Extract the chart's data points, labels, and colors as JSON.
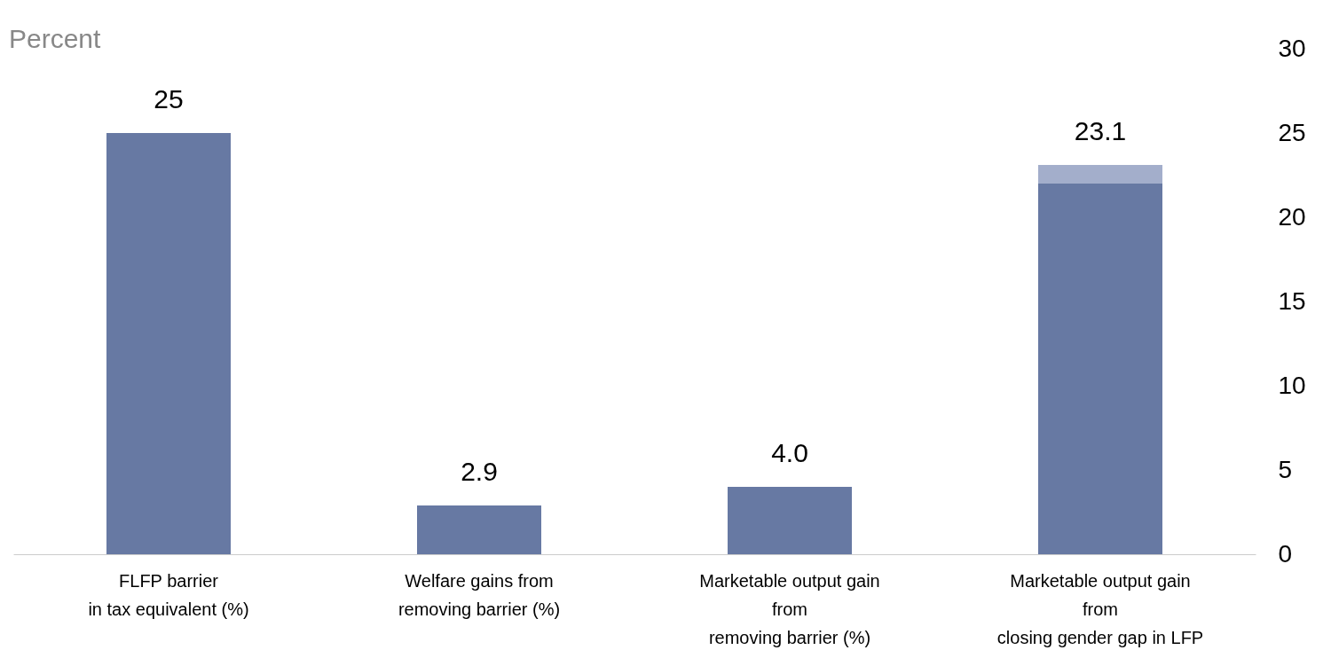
{
  "chart_data": {
    "type": "bar",
    "ylabel": "Percent",
    "categories": [
      "FLFP barrier\nin tax equivalent (%)",
      "Welfare gains from\nremoving barrier (%)",
      "Marketable output gain\nfrom\nremoving barrier (%)",
      "Marketable output gain\nfrom\nclosing gender gap in LFP"
    ],
    "stacked": true,
    "series": [
      {
        "color": "#6779a3",
        "values": [
          25,
          2.9,
          4.0,
          22.0
        ]
      },
      {
        "color": "#a3aecb",
        "values": [
          0,
          0,
          0,
          1.1
        ]
      }
    ],
    "totals": [
      "25",
      "2.9",
      "4.0",
      "23.1"
    ],
    "ylim": [
      0,
      30
    ],
    "yticks": [
      0,
      5,
      10,
      15,
      20,
      25,
      30
    ],
    "grid": false,
    "legend": false
  }
}
